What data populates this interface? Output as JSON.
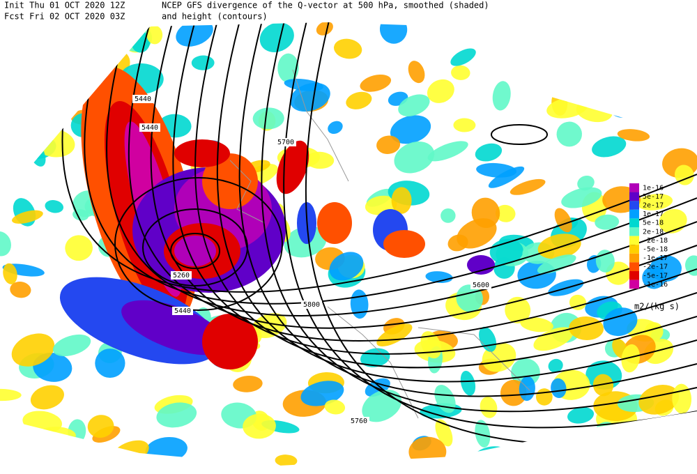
{
  "header": {
    "init": "Init  Thu 01 OCT 2020 12Z",
    "forecast": "Fcst Fri 02 OCT 2020 03Z",
    "title_line1": "NCEP GFS divergence of the Q-vector at 500 hPa, smoothed (shaded)",
    "title_line2": "and height (contours)"
  },
  "contour_labels": [
    "5440",
    "5440",
    "5700",
    "5260",
    "5440",
    "5800",
    "5600",
    "5760"
  ],
  "legend": {
    "items": [
      {
        "label": "1e-16",
        "color": "#b000b8"
      },
      {
        "label": "5e-17",
        "color": "#6000c8"
      },
      {
        "label": "2e-17",
        "color": "#2448f0"
      },
      {
        "label": "1e-17",
        "color": "#00a0ff"
      },
      {
        "label": "5e-18",
        "color": "#00d8d0"
      },
      {
        "label": "2e-18",
        "color": "#60f8c8"
      },
      {
        "label": "-2e-18",
        "color": "#ffff30"
      },
      {
        "label": "-5e-18",
        "color": "#ffd000"
      },
      {
        "label": "-1e-17",
        "color": "#ffa000"
      },
      {
        "label": "-2e-17",
        "color": "#ff5000"
      },
      {
        "label": "-5e-17",
        "color": "#e00000"
      },
      {
        "label": "-1e-16",
        "color": "#d000a0"
      }
    ],
    "units": "m2/(kg s)"
  }
}
